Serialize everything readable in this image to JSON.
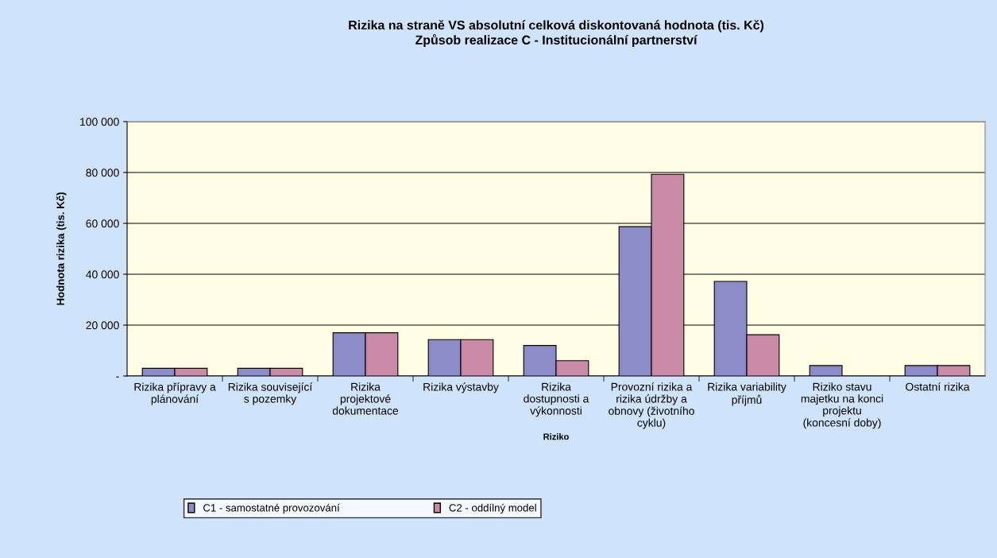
{
  "chart_data": {
    "type": "bar",
    "title": "Rizika na straně VS absolutní celková diskontovaná hodnota (tis. Kč)\nZpůsob realizace C - Institucionální partnerství",
    "xlabel": "Riziko",
    "ylabel": "Hodnota rizika (tis. Kč)",
    "categories": [
      "Rizika přípravy a\nplánování",
      "Rizika související\ns pozemky",
      "Rizika\nprojektové\ndokumentace",
      "Rizika výstavby",
      "Rizika\ndostupnosti a\nvýkonnosti",
      "Provozní rizika a\nrizika údržby a\nobnovy (životního\ncyklu)",
      "Rizika variability\npříjmů",
      "Riziko stavu\nmajetku na konci\nprojektu\n(koncesní doby)",
      "Ostatní rizika"
    ],
    "series": [
      {
        "name": "C1 - samostatné provozování",
        "color": "#8c8cc8",
        "values": [
          3000,
          3000,
          17000,
          14300,
          12000,
          58700,
          37200,
          4100,
          4100
        ]
      },
      {
        "name": "C2 - oddílný model",
        "color": "#c98aa6",
        "values": [
          3000,
          3000,
          17000,
          14300,
          6000,
          79300,
          16200,
          null,
          4100
        ]
      }
    ],
    "ylim": [
      0,
      100000
    ],
    "yticks": [
      {
        "value": 0,
        "label": "-"
      },
      {
        "value": 20000,
        "label": "20 000"
      },
      {
        "value": 40000,
        "label": "40 000"
      },
      {
        "value": 60000,
        "label": "60 000"
      },
      {
        "value": 80000,
        "label": "80 000"
      },
      {
        "value": 100000,
        "label": "100 000"
      }
    ],
    "grid": "y",
    "legend": "bottom"
  }
}
